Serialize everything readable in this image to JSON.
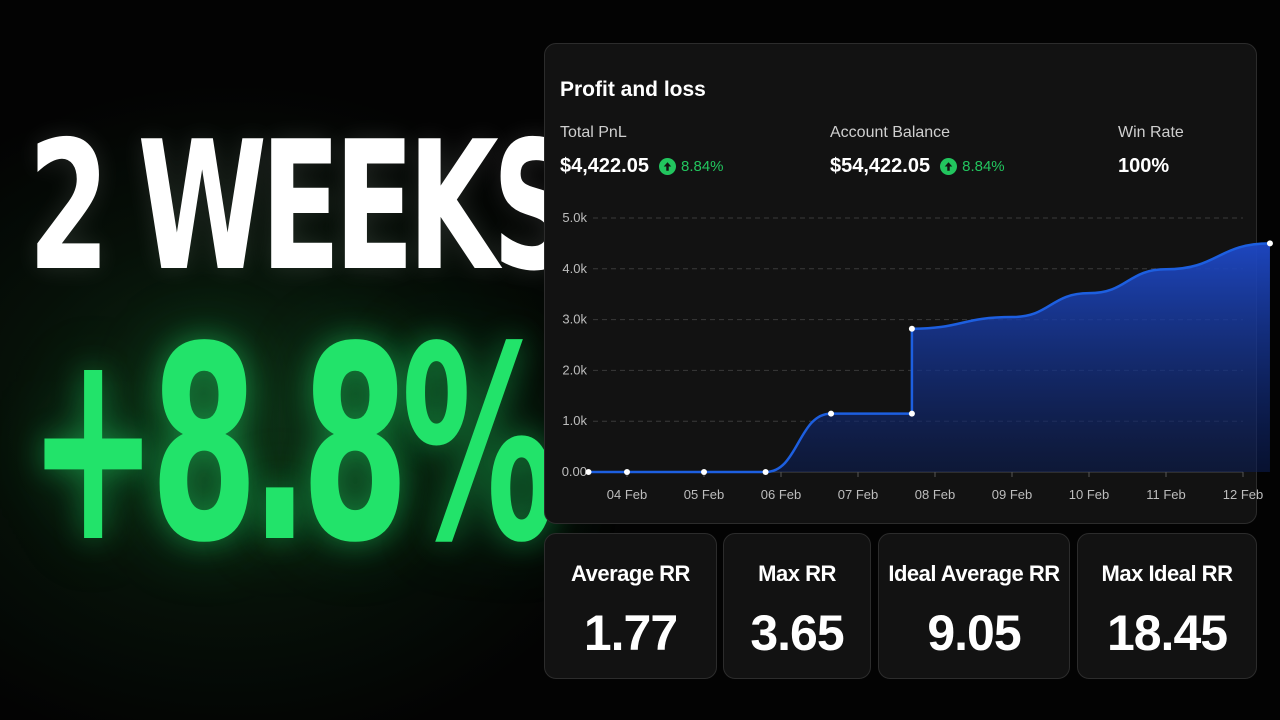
{
  "hero": {
    "line1": "2 WEEKS",
    "line2": "+8.8%"
  },
  "pnl_card": {
    "title": "Profit and loss",
    "stats": [
      {
        "label": "Total PnL",
        "value": "$4,422.05",
        "change": "8.84%"
      },
      {
        "label": "Account Balance",
        "value": "$54,422.05",
        "change": "8.84%"
      },
      {
        "label": "Win Rate",
        "value": "100%"
      }
    ]
  },
  "colors": {
    "accent_green": "#22c55e",
    "hero_green": "#22e36a",
    "line_blue": "#1d5fe0"
  },
  "chart_data": {
    "type": "area",
    "y_ticks": [
      "5.0k",
      "4.0k",
      "3.0k",
      "2.0k",
      "1.0k",
      "0.00"
    ],
    "x_ticks": [
      "04 Feb",
      "05 Feb",
      "06 Feb",
      "07 Feb",
      "08 Feb",
      "09 Feb",
      "10 Feb",
      "11 Feb",
      "12 Feb"
    ],
    "ylim": [
      0,
      5000
    ],
    "grid": true,
    "points": [
      {
        "day": 3.5,
        "value": 0
      },
      {
        "day": 4.0,
        "value": 0
      },
      {
        "day": 5.0,
        "value": 0
      },
      {
        "day": 5.8,
        "value": 0
      },
      {
        "day": 6.65,
        "value": 1150
      },
      {
        "day": 7.7,
        "value": 1150
      },
      {
        "day": 7.7,
        "value": 2820
      },
      {
        "day": 9.0,
        "value": 3050
      },
      {
        "day": 10.0,
        "value": 3520
      },
      {
        "day": 11.0,
        "value": 3990
      },
      {
        "day": 12.35,
        "value": 4500
      }
    ],
    "markers": [
      0,
      1,
      2,
      3,
      4,
      5,
      6,
      10
    ]
  },
  "rr_cards": [
    {
      "label": "Average RR",
      "value": "1.77"
    },
    {
      "label": "Max RR",
      "value": "3.65"
    },
    {
      "label": "Ideal Average RR",
      "value": "9.05"
    },
    {
      "label": "Max Ideal RR",
      "value": "18.45"
    }
  ]
}
